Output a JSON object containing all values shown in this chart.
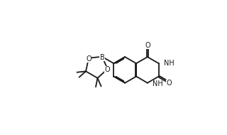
{
  "bg_color": "#ffffff",
  "line_color": "#1a1a1a",
  "lw": 1.3,
  "fs": 7.0,
  "fw": 3.2,
  "fh": 1.9,
  "dpi": 100,
  "B": 0.75,
  "xlim": [
    0.0,
    10.0
  ],
  "ylim": [
    0.2,
    6.2
  ]
}
